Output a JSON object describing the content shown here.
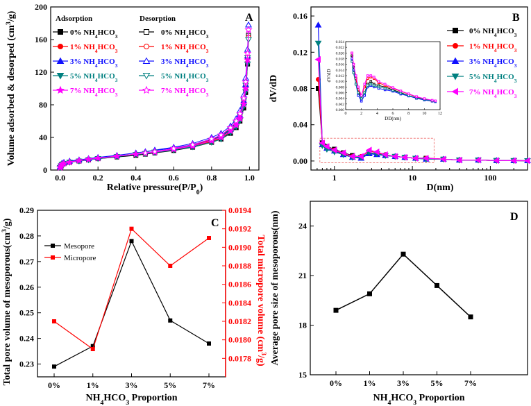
{
  "colors": {
    "s0": "#000000",
    "s1": "#ff0000",
    "s3": "#1010ff",
    "s5": "#008080",
    "s7": "#ff00ff",
    "red": "#ff0000",
    "black": "#000000"
  },
  "chart_data": [
    {
      "panel": "A",
      "type": "line",
      "xlabel_main": "Relative pressure(P/P",
      "xlabel_sub": "0",
      "xlabel_end": ")",
      "ylabel": "Volume adsorbed & desorped (cm",
      "ylabel_sup": "3",
      "ylabel_end": "/g)",
      "xlim": [
        -0.05,
        1.05
      ],
      "ylim": [
        0,
        200
      ],
      "xticks": [
        "0.0",
        "0.2",
        "0.4",
        "0.6",
        "0.8",
        "1.0"
      ],
      "xtick_values": [
        0,
        0.2,
        0.4,
        0.6,
        0.8,
        1.0
      ],
      "yticks": [
        "0",
        "40",
        "80",
        "120",
        "160",
        "200"
      ],
      "ytick_values": [
        0,
        40,
        80,
        120,
        160,
        200
      ],
      "legend_headers": {
        "adsorption": "Adsorption",
        "desorption": "Desorption"
      },
      "legend": [
        {
          "pre": "0% NH",
          "s1": "4",
          "mid": "HCO",
          "s2": "3",
          "color_key": "s0",
          "marker": "square"
        },
        {
          "pre": "1% NH",
          "s1": "4",
          "mid": "HCO",
          "s2": "3",
          "color_key": "s1",
          "marker": "circle"
        },
        {
          "pre": "3% NH",
          "s1": "4",
          "mid": "HCO",
          "s2": "3",
          "color_key": "s3",
          "marker": "triangle-up"
        },
        {
          "pre": "5% NH",
          "s1": "4",
          "mid": "HCO",
          "s2": "3",
          "color_key": "s5",
          "marker": "triangle-down"
        },
        {
          "pre": "7% NH",
          "s1": "4",
          "mid": "HCO",
          "s2": "3",
          "color_key": "s7",
          "marker": "star"
        }
      ],
      "x": [
        0.0,
        0.005,
        0.01,
        0.02,
        0.05,
        0.1,
        0.15,
        0.2,
        0.3,
        0.4,
        0.5,
        0.6,
        0.7,
        0.8,
        0.85,
        0.9,
        0.93,
        0.95,
        0.97,
        0.98,
        0.99,
        0.995
      ],
      "series": [
        {
          "name": "0% NH4HCO3",
          "color_key": "s0",
          "marker": "square",
          "values": [
            3,
            5,
            7,
            8,
            9.5,
            11,
            12.5,
            14,
            16,
            18,
            21,
            24,
            28,
            34,
            38,
            45,
            52,
            60,
            76,
            95,
            130,
            165
          ]
        },
        {
          "name": "1% NH4HCO3",
          "color_key": "s1",
          "marker": "circle",
          "values": [
            3,
            5.5,
            7.5,
            8.5,
            10,
            11.5,
            13,
            14.5,
            17,
            19.5,
            22,
            25,
            29,
            35,
            39,
            47,
            54,
            62,
            79,
            98,
            132,
            163
          ]
        },
        {
          "name": "3% NH4HCO3",
          "color_key": "s3",
          "marker": "triangle-up",
          "values": [
            4,
            6.5,
            8.5,
            9.5,
            11,
            12.5,
            14,
            15.5,
            18,
            21,
            24,
            27,
            31,
            38,
            42,
            50,
            58,
            67,
            85,
            105,
            140,
            178
          ]
        },
        {
          "name": "5% NH4HCO3",
          "color_key": "s5",
          "marker": "triangle-down",
          "values": [
            3,
            5,
            7,
            8,
            9.5,
            11,
            12.5,
            14,
            16.5,
            19,
            21.5,
            24.5,
            28.5,
            34,
            38,
            46,
            53,
            61,
            78,
            96,
            130,
            160
          ]
        },
        {
          "name": "7% NH4HCO3",
          "color_key": "s7",
          "marker": "star",
          "values": [
            3,
            5,
            7,
            8,
            9.5,
            11.5,
            13,
            14.5,
            17,
            19.5,
            22,
            25.5,
            29.5,
            36,
            40,
            48,
            55,
            63,
            81,
            100,
            135,
            172
          ]
        }
      ],
      "desorption_x": [
        0.995,
        0.99,
        0.98,
        0.97,
        0.95,
        0.93,
        0.9,
        0.85,
        0.8,
        0.7,
        0.6,
        0.5,
        0.45
      ],
      "desorption_offsets": [
        0,
        8,
        8,
        7,
        6,
        5,
        4,
        3,
        2,
        1.5,
        1,
        0.5,
        0
      ]
    },
    {
      "panel": "B",
      "type": "line",
      "xscale": "log",
      "xlabel": "D(nm)",
      "ylabel": "dV/dD",
      "xlim": [
        0.5,
        300
      ],
      "ylim": [
        -0.01,
        0.17
      ],
      "xticks": [
        "1",
        "10",
        "100"
      ],
      "xtick_values": [
        1,
        10,
        100
      ],
      "yticks": [
        "0.00",
        "0.04",
        "0.08",
        "0.12",
        "0.16"
      ],
      "ytick_values": [
        0,
        0.04,
        0.08,
        0.12,
        0.16
      ],
      "legend": [
        {
          "pre": "0% NH",
          "s1": "4",
          "mid": "HCO",
          "s2": "3",
          "color_key": "s0",
          "marker": "square"
        },
        {
          "pre": "1% NH",
          "s1": "4",
          "mid": "HCO",
          "s2": "3",
          "color_key": "s1",
          "marker": "circle"
        },
        {
          "pre": "3% NH",
          "s1": "4",
          "mid": "HCO",
          "s2": "3",
          "color_key": "s3",
          "marker": "triangle-up"
        },
        {
          "pre": "5% NH",
          "s1": "4",
          "mid": "HCO",
          "s2": "3",
          "color_key": "s5",
          "marker": "triangle-down"
        },
        {
          "pre": "7% NH",
          "s1": "4",
          "mid": "HCO",
          "s2": "3",
          "color_key": "s7",
          "marker": "triangle-left"
        }
      ],
      "x": [
        0.62,
        0.7,
        0.8,
        1.0,
        1.3,
        1.7,
        2.2,
        2.8,
        3.5,
        4.5,
        6,
        8,
        11,
        15,
        25,
        40,
        70,
        120,
        200,
        300
      ],
      "series": [
        {
          "name": "0% NH4HCO3",
          "color_key": "s0",
          "marker": "square",
          "values": [
            0.08,
            0.02,
            0.016,
            0.013,
            0.009,
            0.006,
            0.004,
            0.009,
            0.008,
            0.006,
            0.005,
            0.004,
            0.003,
            0.003,
            0.002,
            0.001,
            0.001,
            0.0005,
            0.0004,
            0.0003
          ]
        },
        {
          "name": "1% NH4HCO3",
          "color_key": "s1",
          "marker": "circle",
          "values": [
            0.09,
            0.019,
            0.015,
            0.012,
            0.008,
            0.005,
            0.005,
            0.011,
            0.009,
            0.007,
            0.005,
            0.004,
            0.003,
            0.003,
            0.002,
            0.001,
            0.001,
            0.0005,
            0.0004,
            0.0003
          ]
        },
        {
          "name": "3% NH4HCO3",
          "color_key": "s3",
          "marker": "triangle-up",
          "values": [
            0.15,
            0.018,
            0.014,
            0.011,
            0.007,
            0.004,
            0.003,
            0.008,
            0.007,
            0.006,
            0.005,
            0.004,
            0.003,
            0.002,
            0.002,
            0.001,
            0.001,
            0.0005,
            0.0004,
            0.0003
          ]
        },
        {
          "name": "5% NH4HCO3",
          "color_key": "s5",
          "marker": "triangle-down",
          "values": [
            0.13,
            0.017,
            0.013,
            0.01,
            0.007,
            0.004,
            0.004,
            0.009,
            0.008,
            0.006,
            0.005,
            0.004,
            0.003,
            0.002,
            0.002,
            0.001,
            0.001,
            0.0005,
            0.0004,
            0.0003
          ]
        },
        {
          "name": "7% NH4HCO3",
          "color_key": "s7",
          "marker": "triangle-left",
          "values": [
            0.112,
            0.02,
            0.016,
            0.012,
            0.009,
            0.005,
            0.005,
            0.012,
            0.01,
            0.007,
            0.005,
            0.004,
            0.003,
            0.003,
            0.002,
            0.001,
            0.001,
            0.0005,
            0.0004,
            0.0003
          ]
        }
      ],
      "inset": {
        "xlabel": "DD(nm)",
        "ylabel": "dV/dD",
        "xlim": [
          0,
          12
        ],
        "ylim": [
          0,
          0.024
        ],
        "xticks": [
          "0",
          "2",
          "4",
          "6",
          "8",
          "10",
          "12"
        ],
        "xtick_values": [
          0,
          2,
          4,
          6,
          8,
          10,
          12
        ],
        "yticks": [
          "0.000",
          "0.002",
          "0.004",
          "0.006",
          "0.008",
          "0.010",
          "0.012",
          "0.014",
          "0.016",
          "0.018",
          "0.020",
          "0.022",
          "0.024"
        ],
        "ytick_values": [
          0,
          0.002,
          0.004,
          0.006,
          0.008,
          0.01,
          0.012,
          0.014,
          0.016,
          0.018,
          0.02,
          0.022,
          0.024
        ],
        "x": [
          0.8,
          1.0,
          1.3,
          1.6,
          2.0,
          2.4,
          2.8,
          3.2,
          3.6,
          4.2,
          5,
          6,
          7,
          8,
          9,
          10,
          11,
          11.4
        ],
        "series": [
          {
            "color_key": "s0",
            "values": [
              0.019,
              0.015,
              0.011,
              0.007,
              0.004,
              0.006,
              0.009,
              0.01,
              0.009,
              0.0085,
              0.008,
              0.007,
              0.006,
              0.005,
              0.004,
              0.0035,
              0.003,
              0.003
            ]
          },
          {
            "color_key": "s1",
            "values": [
              0.02,
              0.016,
              0.011,
              0.007,
              0.005,
              0.008,
              0.011,
              0.0115,
              0.011,
              0.0095,
              0.0085,
              0.0075,
              0.0065,
              0.0055,
              0.0045,
              0.0038,
              0.0032,
              0.003
            ]
          },
          {
            "color_key": "s3",
            "values": [
              0.018,
              0.014,
              0.009,
              0.005,
              0.003,
              0.005,
              0.008,
              0.0085,
              0.008,
              0.0075,
              0.007,
              0.0065,
              0.0055,
              0.0048,
              0.004,
              0.0034,
              0.003,
              0.0028
            ]
          },
          {
            "color_key": "s5",
            "values": [
              0.017,
              0.013,
              0.009,
              0.006,
              0.004,
              0.006,
              0.0085,
              0.009,
              0.0085,
              0.008,
              0.0075,
              0.0068,
              0.0058,
              0.005,
              0.0042,
              0.0036,
              0.0031,
              0.003
            ]
          },
          {
            "color_key": "s7",
            "values": [
              0.02,
              0.016,
              0.012,
              0.008,
              0.005,
              0.009,
              0.012,
              0.012,
              0.0115,
              0.01,
              0.009,
              0.0078,
              0.0066,
              0.0056,
              0.0046,
              0.0039,
              0.0033,
              0.0031
            ]
          }
        ]
      }
    },
    {
      "panel": "C",
      "type": "line",
      "categories": [
        "0%",
        "1%",
        "3%",
        "5%",
        "7%"
      ],
      "xlabel_main": "NH",
      "xlabel_sub1": "4",
      "xlabel_mid": "HCO",
      "xlabel_sub2": "3",
      "xlabel_end": " Proportion",
      "ylabel_left": "Total pore volume of mesoporous(cm",
      "ylabel_left_sup": "3",
      "ylabel_left_end": "/g)",
      "ylabel_right": "Total micropore volume (cm",
      "ylabel_right_sup": "3",
      "ylabel_right_end": "/g)",
      "ylim_left": [
        0.225,
        0.29
      ],
      "ylim_right": [
        0.0176,
        0.0194
      ],
      "yticks_left": [
        "0.23",
        "0.24",
        "0.25",
        "0.26",
        "0.27",
        "0.28",
        "0.29"
      ],
      "ytick_values_left": [
        0.23,
        0.24,
        0.25,
        0.26,
        0.27,
        0.28,
        0.29
      ],
      "yticks_right": [
        "0.0178",
        "0.0180",
        "0.0182",
        "0.0184",
        "0.0186",
        "0.0188",
        "0.0190",
        "0.0192",
        "0.0194"
      ],
      "ytick_values_right": [
        0.0178,
        0.018,
        0.0182,
        0.0184,
        0.0186,
        0.0188,
        0.019,
        0.0192,
        0.0194
      ],
      "series": [
        {
          "name": "Mesopore",
          "axis": "left",
          "color_key": "black",
          "values": [
            0.229,
            0.237,
            0.278,
            0.247,
            0.238
          ]
        },
        {
          "name": "Micropore",
          "axis": "right",
          "color_key": "red",
          "values": [
            0.0182,
            0.0179,
            0.0192,
            0.0188,
            0.0191
          ]
        }
      ]
    },
    {
      "panel": "D",
      "type": "line",
      "categories": [
        "0%",
        "1%",
        "3%",
        "5%",
        "7%"
      ],
      "xlabel_main": "NH",
      "xlabel_sub1": "4",
      "xlabel_mid": "HCO",
      "xlabel_sub2": "3",
      "xlabel_end": " Proportion",
      "ylabel": "Average pore size of mesoporous(nm)",
      "ylim": [
        15,
        25.5
      ],
      "yticks": [
        "15",
        "18",
        "21",
        "24"
      ],
      "ytick_values": [
        15,
        18,
        21,
        24
      ],
      "series": [
        {
          "name": "Average pore size",
          "color_key": "black",
          "values": [
            18.9,
            19.9,
            22.3,
            20.4,
            18.5
          ]
        }
      ]
    }
  ]
}
